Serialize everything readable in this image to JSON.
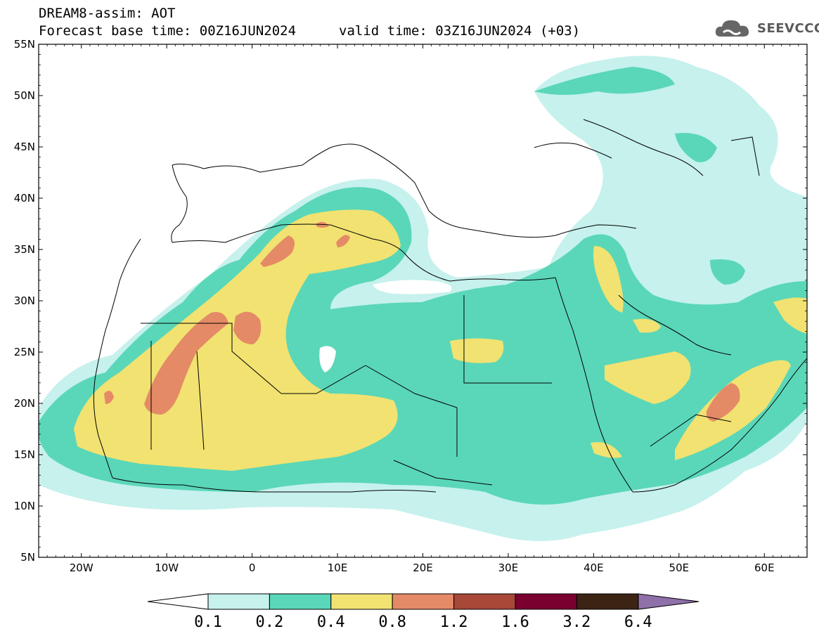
{
  "header": {
    "title": "DREAM8-assim: AOT",
    "base_time": "Forecast base time: 00Z16JUN2024",
    "valid_time": "valid time: 03Z16JUN2024 (+03)"
  },
  "logo": {
    "text": "SEEVCCC",
    "icon": "cloud-logo-icon"
  },
  "map": {
    "lat_ticks": [
      "55N",
      "50N",
      "45N",
      "40N",
      "35N",
      "30N",
      "25N",
      "20N",
      "15N",
      "10N",
      "5N"
    ],
    "lon_ticks": [
      "20W",
      "10W",
      "0",
      "10E",
      "20E",
      "30E",
      "40E",
      "50E",
      "60E"
    ],
    "lon_range": [
      -25,
      65
    ],
    "lat_range": [
      5,
      55
    ]
  },
  "legend": {
    "levels": [
      "0.1",
      "0.2",
      "0.4",
      "0.8",
      "1.2",
      "1.6",
      "3.2",
      "6.4"
    ],
    "colors": [
      "#ffffff",
      "#c6f1ec",
      "#5ad7b8",
      "#f2e271",
      "#e58a66",
      "#a84838",
      "#7a0030",
      "#3b2414",
      "#8f70a8"
    ]
  }
}
